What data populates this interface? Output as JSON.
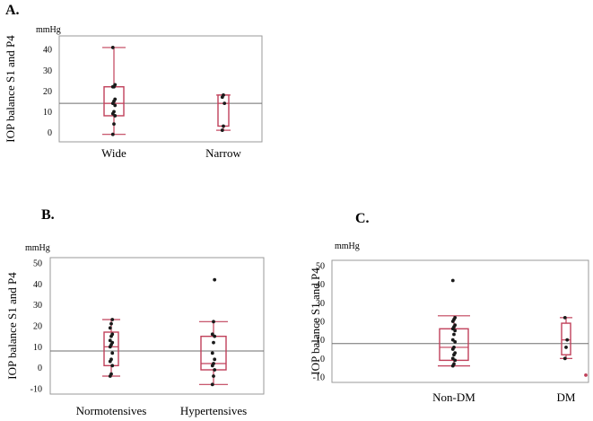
{
  "chart_data": [
    {
      "type": "box",
      "panel": "A.",
      "ylabel": "IOP balance S1 and P4",
      "unit": "mmHg",
      "ylim": [
        -2,
        44
      ],
      "yticks": [
        0,
        10,
        20,
        30,
        40
      ],
      "reference_line": 14,
      "categories": [
        {
          "name": "Wide",
          "whisker_low": -1,
          "q1": 8,
          "median": 14,
          "q3": 22,
          "whisker_high": 41,
          "points": [
            -1,
            4,
            8,
            9,
            10,
            13,
            14,
            15,
            16,
            22,
            22,
            23,
            41
          ]
        },
        {
          "name": "Narrow",
          "whisker_low": 1,
          "q1": 3,
          "median": 14,
          "q3": 18,
          "whisker_high": 18,
          "points": [
            1,
            3,
            14,
            17,
            18
          ]
        }
      ]
    },
    {
      "type": "box",
      "panel": "B.",
      "ylabel": "IOP balance S1 and P4",
      "unit": "mmHg",
      "ylim": [
        -10,
        50
      ],
      "yticks": [
        -10,
        0,
        10,
        20,
        30,
        40,
        50
      ],
      "reference_line": 8,
      "categories": [
        {
          "name": "Normotensives",
          "whisker_low": -4,
          "q1": 1,
          "median": 10,
          "q3": 17,
          "whisker_high": 23,
          "points": [
            -4,
            -3,
            1,
            3,
            4,
            7,
            10,
            11,
            12,
            13,
            15,
            16,
            19,
            21,
            23
          ]
        },
        {
          "name": "Hypertensives",
          "whisker_low": -8,
          "q1": -1,
          "median": 2,
          "q3": 15,
          "whisker_high": 22,
          "points": [
            -8,
            -4,
            -1,
            1,
            2,
            4,
            7,
            12,
            15,
            16,
            22,
            42
          ]
        }
      ]
    },
    {
      "type": "box",
      "panel": "C.",
      "ylabel": "IOP balance S1 and P4",
      "unit": "mmHg",
      "ylim": [
        -10,
        50
      ],
      "yticks": [
        -10,
        0,
        10,
        20,
        30,
        40,
        50
      ],
      "reference_line": 8,
      "categories": [
        {
          "name": "Non-DM",
          "whisker_low": -4,
          "q1": -1,
          "median": 6,
          "q3": 16,
          "whisker_high": 23,
          "points": [
            -4,
            -3,
            -1,
            0,
            2,
            3,
            5,
            6,
            9,
            10,
            13,
            15,
            16,
            17,
            18,
            20,
            21,
            22,
            42
          ]
        },
        {
          "name": "DM",
          "whisker_low": 0,
          "q1": 2,
          "median": 10,
          "q3": 19,
          "whisker_high": 22,
          "points": [
            0,
            6,
            10,
            22
          ],
          "outliers": [
            -9
          ]
        }
      ]
    }
  ]
}
